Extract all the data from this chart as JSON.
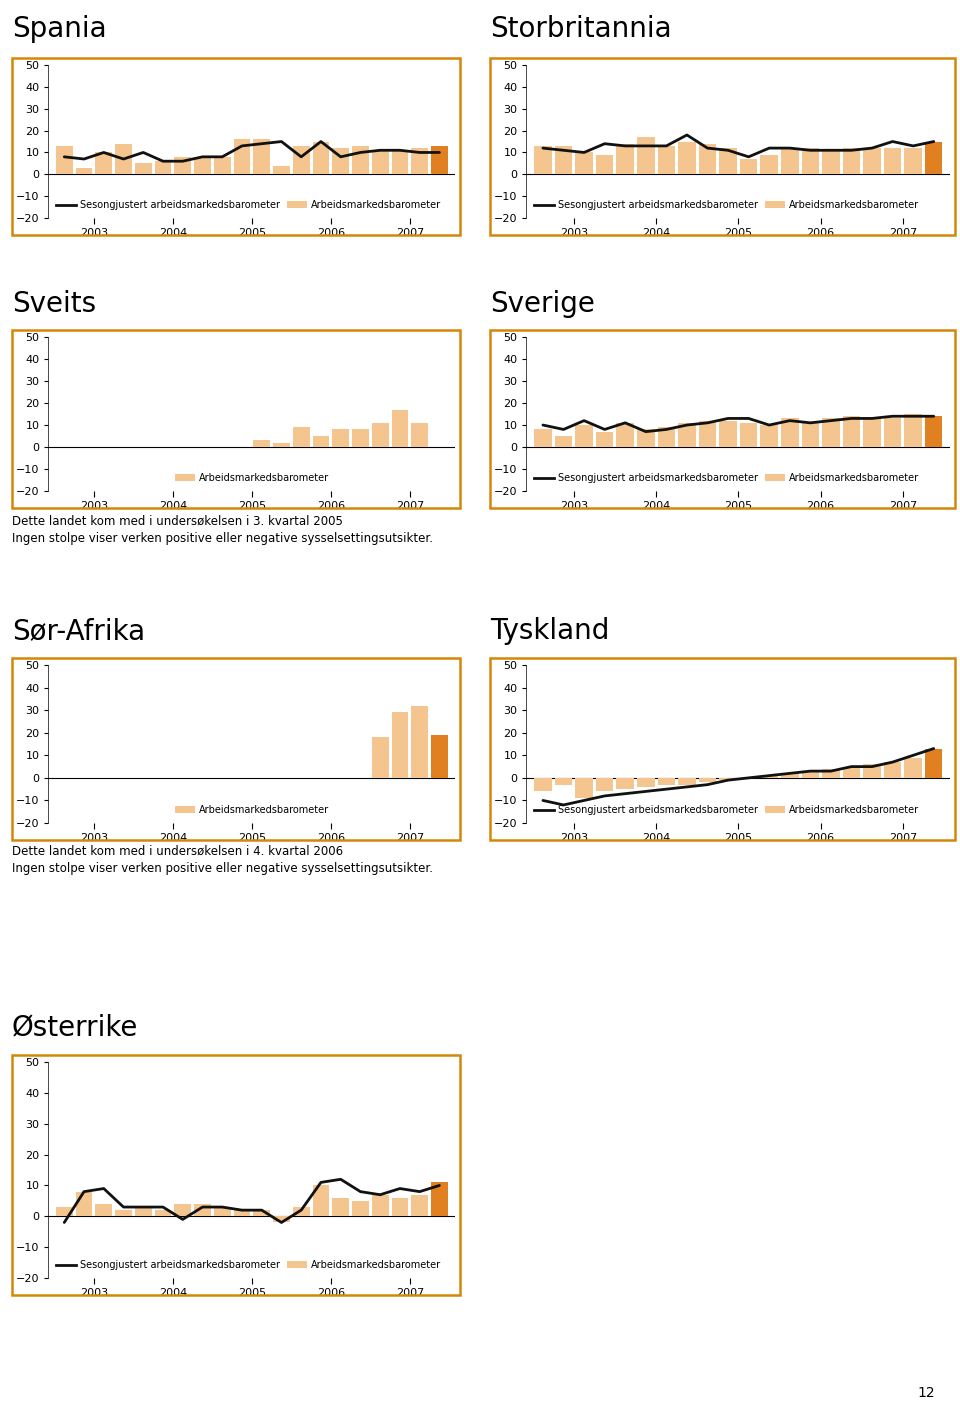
{
  "charts": [
    {
      "title": "Spania",
      "col": 0,
      "row": 0,
      "has_line": true,
      "ylim": [
        -20,
        50
      ],
      "yticks": [
        -20,
        -10,
        0,
        10,
        20,
        30,
        40,
        50
      ],
      "bars": [
        13,
        3,
        10,
        14,
        5,
        6,
        8,
        8,
        8,
        16,
        16,
        4,
        13,
        15,
        12,
        13,
        11,
        11,
        12,
        13
      ],
      "line": [
        8,
        7,
        10,
        7,
        10,
        6,
        6,
        8,
        8,
        13,
        14,
        15,
        8,
        15,
        8,
        10,
        11,
        11,
        10,
        10
      ],
      "bar_note": null,
      "legend": [
        "Sesongjustert arbeidsmarkedsbarometer",
        "Arbeidsmarkedsbarometer"
      ]
    },
    {
      "title": "Storbritannia",
      "col": 1,
      "row": 0,
      "has_line": true,
      "ylim": [
        -20,
        50
      ],
      "yticks": [
        -20,
        -10,
        0,
        10,
        20,
        30,
        40,
        50
      ],
      "bars": [
        13,
        13,
        10,
        9,
        14,
        17,
        13,
        15,
        14,
        12,
        7,
        9,
        12,
        12,
        11,
        12,
        12,
        12,
        12,
        15
      ],
      "line": [
        12,
        11,
        10,
        14,
        13,
        13,
        13,
        18,
        12,
        11,
        8,
        12,
        12,
        11,
        11,
        11,
        12,
        15,
        13,
        15
      ],
      "bar_note": null,
      "legend": [
        "Sesongjustert arbeidsmarkedsbarometer",
        "Arbeidsmarkedsbarometer"
      ]
    },
    {
      "title": "Sveits",
      "col": 0,
      "row": 1,
      "has_line": false,
      "ylim": [
        -20,
        50
      ],
      "yticks": [
        -20,
        -10,
        0,
        10,
        20,
        30,
        40,
        50
      ],
      "bars": [
        null,
        null,
        null,
        null,
        null,
        null,
        null,
        null,
        null,
        null,
        3,
        2,
        9,
        5,
        8,
        8,
        11,
        17,
        11,
        null
      ],
      "line": null,
      "bar_note": "Dette landet kom med i undersøkelsen i 3. kvartal 2005\nIngen stolpe viser verken positive eller negative sysselsettingsutsikter.",
      "legend": [
        "Arbeidsmarkedsbarometer"
      ]
    },
    {
      "title": "Sverige",
      "col": 1,
      "row": 1,
      "has_line": true,
      "ylim": [
        -20,
        50
      ],
      "yticks": [
        -20,
        -10,
        0,
        10,
        20,
        30,
        40,
        50
      ],
      "bars": [
        8,
        5,
        10,
        7,
        11,
        8,
        9,
        11,
        12,
        12,
        11,
        10,
        13,
        11,
        13,
        14,
        13,
        13,
        15,
        14
      ],
      "line": [
        10,
        8,
        12,
        8,
        11,
        7,
        8,
        10,
        11,
        13,
        13,
        10,
        12,
        11,
        12,
        13,
        13,
        14,
        14,
        14
      ],
      "bar_note": null,
      "legend": [
        "Sesongjustert arbeidsmarkedsbarometer",
        "Arbeidsmarkedsbarometer"
      ]
    },
    {
      "title": "Sør-Afrika",
      "col": 0,
      "row": 2,
      "has_line": false,
      "ylim": [
        -20,
        50
      ],
      "yticks": [
        -20,
        -10,
        0,
        10,
        20,
        30,
        40,
        50
      ],
      "bars": [
        null,
        null,
        null,
        null,
        null,
        null,
        null,
        null,
        null,
        null,
        null,
        null,
        null,
        null,
        null,
        null,
        18,
        29,
        32,
        19
      ],
      "line": null,
      "bar_note": "Dette landet kom med i undersøkelsen i 4. kvartal 2006\nIngen stolpe viser verken positive eller negative sysselsettingsutsikter.",
      "legend": [
        "Arbeidsmarkedsbarometer"
      ]
    },
    {
      "title": "Tyskland",
      "col": 1,
      "row": 2,
      "has_line": true,
      "ylim": [
        -20,
        50
      ],
      "yticks": [
        -20,
        -10,
        0,
        10,
        20,
        30,
        40,
        50
      ],
      "bars": [
        -6,
        -3,
        -9,
        -6,
        -5,
        -4,
        -3,
        -3,
        -2,
        -1,
        0,
        1,
        2,
        3,
        4,
        5,
        6,
        7,
        9,
        13
      ],
      "line": [
        -10,
        -12,
        -10,
        -8,
        -7,
        -6,
        -5,
        -4,
        -3,
        -1,
        0,
        1,
        2,
        3,
        3,
        5,
        5,
        7,
        10,
        13
      ],
      "bar_note": null,
      "legend": [
        "Sesongjustert arbeidsmarkedsbarometer",
        "Arbeidsmarkedsbarometer"
      ]
    },
    {
      "title": "Østerrike",
      "col": 0,
      "row": 3,
      "has_line": true,
      "ylim": [
        -20,
        50
      ],
      "yticks": [
        -20,
        -10,
        0,
        10,
        20,
        30,
        40,
        50
      ],
      "bars": [
        3,
        8,
        4,
        2,
        3,
        2,
        4,
        4,
        3,
        2,
        2,
        -2,
        3,
        10,
        6,
        5,
        7,
        6,
        7,
        11
      ],
      "line": [
        -2,
        8,
        9,
        3,
        3,
        3,
        -1,
        3,
        3,
        2,
        2,
        -2,
        2,
        11,
        12,
        8,
        7,
        9,
        8,
        10
      ],
      "bar_note": null,
      "legend": [
        "Sesongjustert arbeidsmarkedsbarometer",
        "Arbeidsmarkedsbarometer"
      ]
    }
  ],
  "n_quarters": 20,
  "year_labels": [
    "2003",
    "2004",
    "2005",
    "2006",
    "2007"
  ],
  "bar_color_light": "#F5C590",
  "bar_color_dark": "#E08020",
  "line_color": "#111111",
  "border_color": "#D4880A",
  "title_fontsize": 20,
  "axis_fontsize": 8,
  "legend_fontsize": 7,
  "note_fontsize": 8.5,
  "page_number": "12"
}
